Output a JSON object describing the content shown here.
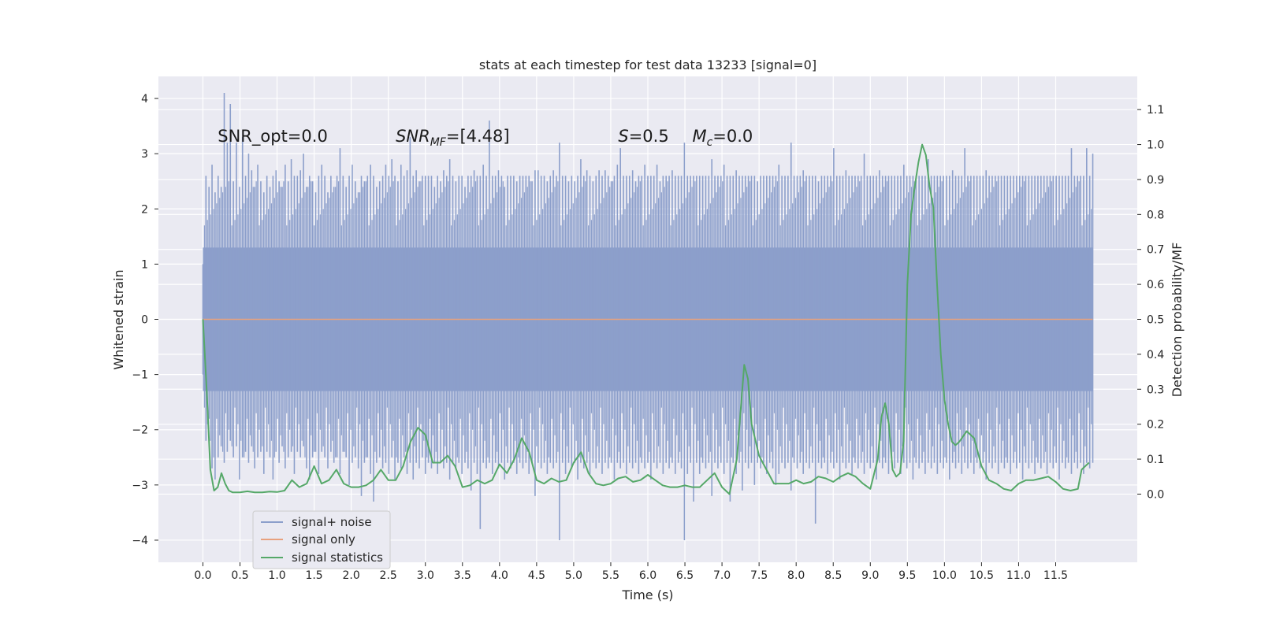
{
  "chart_data": {
    "type": "line",
    "title": "stats at each timestep for test data 13233 [signal=0]",
    "xlabel": "Time (s)",
    "ylabel": "Whitened strain",
    "y2label": "Detection probability/MF",
    "xlim": [
      -0.6,
      12.6
    ],
    "ylim": [
      -4.4,
      4.4
    ],
    "y2lim": [
      -0.195,
      1.195
    ],
    "xticks": [
      0.0,
      0.5,
      1.0,
      1.5,
      2.0,
      2.5,
      3.0,
      3.5,
      4.0,
      4.5,
      5.0,
      5.5,
      6.0,
      6.5,
      7.0,
      7.5,
      8.0,
      8.5,
      9.0,
      9.5,
      10.0,
      10.5,
      11.0,
      11.5
    ],
    "yticks": [
      -4,
      -3,
      -2,
      -1,
      0,
      1,
      2,
      3,
      4
    ],
    "y2ticks": [
      0.0,
      0.1,
      0.2,
      0.3,
      0.4,
      0.5,
      0.6,
      0.7,
      0.8,
      0.9,
      1.0,
      1.1
    ],
    "grid": true,
    "legend_position": "lower-left",
    "annotations": [
      {
        "text": "SNR_opt=0.0",
        "x": 0.2,
        "y": 3.3
      },
      {
        "text": "SNR_MF=[4.48]",
        "x": 2.6,
        "y": 3.3
      },
      {
        "text": "S=0.5",
        "x": 5.6,
        "y": 3.3
      },
      {
        "text": "M_c=0.0",
        "x": 6.6,
        "y": 3.3
      }
    ],
    "series": [
      {
        "name": "signal+ noise",
        "axis": "left",
        "color": "#8c9fcb",
        "x_range": [
          0.0,
          12.0
        ],
        "envelope_upper": [
          1.0,
          2.6,
          2.4,
          2.8,
          2.3,
          2.6,
          2.4,
          4.1,
          3.2,
          3.9,
          2.5,
          3.2,
          2.4,
          3.3,
          2.6,
          3.0,
          2.7,
          2.4,
          2.8,
          2.5,
          2.3,
          2.6,
          2.4,
          2.6,
          2.7,
          2.5,
          2.4,
          2.8,
          2.5,
          2.9,
          2.6,
          2.6,
          2.7,
          3.0,
          2.4,
          2.6,
          2.5,
          2.3,
          2.6,
          2.8,
          2.6,
          2.3,
          2.6,
          2.4,
          2.6,
          3.1,
          2.6,
          2.4,
          2.6,
          2.8,
          2.5,
          2.3,
          2.6,
          2.5,
          2.6,
          2.8,
          2.6,
          2.4,
          2.5,
          2.6,
          2.8,
          2.6,
          2.9,
          2.6,
          2.5,
          2.8,
          2.6,
          2.7,
          3.3,
          2.6,
          2.7,
          2.5,
          2.6,
          2.6,
          2.6,
          2.6,
          2.4,
          2.6,
          2.5,
          2.7,
          2.6,
          2.9,
          2.6,
          2.5,
          2.6,
          2.6,
          2.4,
          2.6,
          2.6,
          2.7,
          2.6,
          2.6,
          2.8,
          2.6,
          3.6,
          2.6,
          2.6,
          2.7,
          2.6,
          2.4,
          2.6,
          2.6,
          2.6,
          2.5,
          2.6,
          2.6,
          2.6,
          2.6,
          2.5,
          2.7,
          2.7,
          2.6,
          2.6,
          2.5,
          2.6,
          2.7,
          2.6,
          3.2,
          2.6,
          2.6,
          2.5,
          2.6,
          2.5,
          2.6,
          2.9,
          2.6,
          2.7,
          2.6,
          2.5,
          2.6,
          2.7,
          2.6,
          2.7,
          2.6,
          2.5,
          2.6,
          2.8,
          3.1,
          2.6,
          2.6,
          2.6,
          2.7,
          2.5,
          2.6,
          2.6,
          2.8,
          2.6,
          2.6,
          2.6,
          2.8,
          2.5,
          2.6,
          2.6,
          2.6,
          2.7,
          2.6,
          2.6,
          2.6,
          3.2,
          2.6,
          2.6,
          2.6,
          2.6,
          2.6,
          2.6,
          2.6,
          2.6,
          2.9,
          2.6,
          2.6,
          2.6,
          2.8,
          2.6,
          2.6,
          2.6,
          2.7,
          2.6,
          2.6,
          2.6,
          2.6,
          2.6,
          2.6,
          2.5,
          2.6,
          2.6,
          2.6,
          2.6,
          2.6,
          2.6,
          2.8,
          2.6,
          2.6,
          2.6,
          3.2,
          2.6,
          2.6,
          2.6,
          2.7,
          2.6,
          2.6,
          2.6,
          2.6,
          2.5,
          2.6,
          2.6,
          2.6,
          2.6,
          3.1,
          2.6,
          2.6,
          2.6,
          2.7,
          2.6,
          2.6,
          2.6,
          2.6,
          2.6,
          3.0,
          2.6,
          2.6,
          2.6,
          2.6,
          2.7,
          2.6,
          2.6,
          2.6,
          2.6,
          2.6,
          2.6,
          2.6,
          2.8,
          2.6,
          2.6,
          2.6,
          2.6,
          2.6,
          2.6,
          2.6,
          2.9,
          2.6,
          2.6,
          2.6,
          2.6,
          2.6,
          2.6,
          2.6,
          2.7,
          2.6,
          2.6,
          2.6,
          3.1,
          2.6,
          2.6,
          2.6,
          2.6,
          2.6,
          2.6,
          2.7,
          2.6,
          2.6,
          2.6,
          2.6,
          2.6,
          2.6,
          2.6,
          2.6,
          2.6,
          2.6,
          2.6,
          2.6,
          2.6,
          2.6,
          2.6,
          2.6,
          2.6,
          2.6,
          2.6,
          2.6,
          2.6,
          2.6,
          2.6,
          2.6,
          2.6,
          2.6,
          2.6,
          3.1,
          2.6,
          2.6,
          2.6,
          2.6,
          3.1,
          2.6,
          3.0
        ],
        "envelope_lower": [
          -1.0,
          -2.2,
          -1.8,
          -2.7,
          -2.9,
          -2.5,
          -2.3,
          -2.6,
          -2.4,
          -2.2,
          -2.5,
          -2.3,
          -2.9,
          -2.5,
          -2.4,
          -2.6,
          -2.3,
          -2.7,
          -2.5,
          -2.4,
          -2.8,
          -2.4,
          -2.5,
          -2.9,
          -2.4,
          -2.6,
          -2.3,
          -2.7,
          -2.5,
          -2.4,
          -2.8,
          -2.4,
          -2.5,
          -2.3,
          -2.7,
          -2.9,
          -2.5,
          -2.4,
          -2.8,
          -2.4,
          -2.5,
          -2.7,
          -2.4,
          -2.6,
          -2.5,
          -2.8,
          -2.4,
          -2.5,
          -3.0,
          -2.6,
          -2.5,
          -2.7,
          -3.2,
          -2.6,
          -2.5,
          -2.8,
          -3.3,
          -2.6,
          -2.5,
          -2.7,
          -2.6,
          -2.8,
          -2.5,
          -2.9,
          -2.6,
          -2.7,
          -2.5,
          -2.8,
          -2.6,
          -2.9,
          -2.6,
          -2.7,
          -2.5,
          -2.8,
          -2.6,
          -2.7,
          -2.6,
          -2.8,
          -2.6,
          -2.7,
          -2.6,
          -2.9,
          -2.6,
          -2.7,
          -2.6,
          -2.8,
          -2.6,
          -2.7,
          -3.1,
          -2.6,
          -2.8,
          -3.8,
          -2.6,
          -2.7,
          -2.6,
          -2.8,
          -2.6,
          -2.7,
          -2.6,
          -2.9,
          -2.6,
          -2.7,
          -2.6,
          -2.8,
          -2.6,
          -2.7,
          -2.6,
          -2.8,
          -2.6,
          -3.2,
          -2.6,
          -2.7,
          -2.6,
          -2.8,
          -2.6,
          -2.7,
          -2.6,
          -4.0,
          -2.6,
          -2.8,
          -2.6,
          -2.7,
          -2.6,
          -2.9,
          -2.6,
          -2.7,
          -2.6,
          -2.8,
          -2.6,
          -2.7,
          -2.6,
          -2.8,
          -2.6,
          -2.7,
          -2.6,
          -2.9,
          -2.6,
          -2.7,
          -2.6,
          -2.8,
          -2.6,
          -2.7,
          -2.6,
          -2.8,
          -2.6,
          -2.7,
          -2.6,
          -2.9,
          -2.6,
          -2.7,
          -2.6,
          -2.8,
          -2.6,
          -2.7,
          -2.6,
          -2.8,
          -2.6,
          -2.7,
          -4.0,
          -2.8,
          -2.6,
          -3.3,
          -2.6,
          -2.8,
          -2.6,
          -2.7,
          -2.6,
          -3.2,
          -2.6,
          -2.7,
          -2.6,
          -2.8,
          -2.6,
          -3.3,
          -2.6,
          -2.8,
          -2.6,
          -3.1,
          -2.6,
          -2.7,
          -2.6,
          -3.0,
          -2.6,
          -2.7,
          -2.6,
          -2.8,
          -2.6,
          -2.7,
          -3.0,
          -2.8,
          -2.6,
          -2.7,
          -2.6,
          -3.1,
          -2.6,
          -2.7,
          -2.6,
          -2.8,
          -2.6,
          -2.7,
          -2.6,
          -3.7,
          -2.6,
          -2.7,
          -2.6,
          -2.8,
          -2.6,
          -2.7,
          -2.6,
          -2.9,
          -2.6,
          -2.7,
          -2.6,
          -2.8,
          -2.6,
          -2.7,
          -2.6,
          -2.8,
          -2.6,
          -2.7,
          -2.6,
          -2.9,
          -2.6,
          -2.7,
          -2.6,
          -2.8,
          -2.6,
          -2.7,
          -2.6,
          -2.8,
          -2.6,
          -2.7,
          -2.6,
          -2.9,
          -2.6,
          -2.7,
          -2.6,
          -2.8,
          -2.6,
          -2.7,
          -2.6,
          -2.8,
          -2.6,
          -2.7,
          -2.6,
          -2.9,
          -2.6,
          -2.7,
          -2.6,
          -2.8,
          -2.6,
          -2.7,
          -2.6,
          -2.8,
          -2.6,
          -2.7,
          -2.6,
          -2.9,
          -2.6,
          -2.7,
          -2.6,
          -2.8,
          -2.6,
          -2.7,
          -2.6,
          -2.8,
          -2.6,
          -2.7,
          -2.6,
          -2.9,
          -2.6,
          -2.7,
          -2.6,
          -2.8,
          -2.6,
          -2.7,
          -2.6,
          -2.8,
          -2.6,
          -2.7,
          -2.6,
          -2.9,
          -2.6,
          -2.7,
          -2.6,
          -2.8,
          -2.6,
          -2.7,
          -2.6,
          -2.8,
          -2.6,
          -2.7,
          -2.6,
          -2.9,
          -2.6,
          -2.7,
          -2.6,
          -2.8
        ]
      },
      {
        "name": "signal only",
        "axis": "left",
        "color": "#e8a17e",
        "x": [
          0.0,
          12.0
        ],
        "y": [
          0.0,
          0.0
        ]
      },
      {
        "name": "signal statistics",
        "axis": "right",
        "color": "#55a868",
        "x": [
          0.0,
          0.05,
          0.1,
          0.15,
          0.2,
          0.25,
          0.3,
          0.35,
          0.4,
          0.45,
          0.5,
          0.6,
          0.7,
          0.8,
          0.9,
          1.0,
          1.1,
          1.2,
          1.3,
          1.4,
          1.5,
          1.6,
          1.7,
          1.8,
          1.9,
          2.0,
          2.1,
          2.2,
          2.3,
          2.4,
          2.5,
          2.6,
          2.7,
          2.8,
          2.9,
          3.0,
          3.1,
          3.2,
          3.3,
          3.4,
          3.5,
          3.6,
          3.7,
          3.8,
          3.9,
          4.0,
          4.1,
          4.2,
          4.3,
          4.4,
          4.5,
          4.6,
          4.7,
          4.8,
          4.9,
          5.0,
          5.1,
          5.2,
          5.3,
          5.4,
          5.5,
          5.6,
          5.7,
          5.8,
          5.9,
          6.0,
          6.1,
          6.2,
          6.3,
          6.4,
          6.5,
          6.6,
          6.7,
          6.8,
          6.9,
          7.0,
          7.1,
          7.2,
          7.3,
          7.35,
          7.4,
          7.5,
          7.6,
          7.7,
          7.8,
          7.9,
          8.0,
          8.1,
          8.2,
          8.3,
          8.4,
          8.5,
          8.6,
          8.7,
          8.8,
          8.9,
          9.0,
          9.1,
          9.15,
          9.2,
          9.25,
          9.3,
          9.35,
          9.4,
          9.45,
          9.5,
          9.55,
          9.6,
          9.65,
          9.7,
          9.75,
          9.8,
          9.85,
          9.9,
          9.95,
          10.0,
          10.05,
          10.1,
          10.15,
          10.2,
          10.3,
          10.4,
          10.5,
          10.6,
          10.7,
          10.8,
          10.9,
          11.0,
          11.1,
          11.2,
          11.3,
          11.4,
          11.5,
          11.6,
          11.7,
          11.8,
          11.85,
          11.9,
          11.95
        ],
        "y": [
          0.5,
          0.3,
          0.07,
          0.01,
          0.02,
          0.06,
          0.03,
          0.01,
          0.005,
          0.005,
          0.005,
          0.008,
          0.005,
          0.005,
          0.007,
          0.006,
          0.01,
          0.04,
          0.02,
          0.03,
          0.08,
          0.03,
          0.04,
          0.07,
          0.03,
          0.02,
          0.02,
          0.025,
          0.04,
          0.07,
          0.04,
          0.04,
          0.08,
          0.15,
          0.19,
          0.17,
          0.09,
          0.09,
          0.11,
          0.08,
          0.02,
          0.025,
          0.04,
          0.03,
          0.04,
          0.085,
          0.06,
          0.1,
          0.16,
          0.12,
          0.04,
          0.03,
          0.045,
          0.035,
          0.04,
          0.09,
          0.12,
          0.06,
          0.03,
          0.025,
          0.03,
          0.045,
          0.05,
          0.035,
          0.04,
          0.055,
          0.04,
          0.025,
          0.02,
          0.02,
          0.025,
          0.02,
          0.02,
          0.04,
          0.06,
          0.02,
          0.0,
          0.1,
          0.37,
          0.33,
          0.2,
          0.11,
          0.07,
          0.03,
          0.03,
          0.03,
          0.04,
          0.03,
          0.035,
          0.05,
          0.045,
          0.035,
          0.05,
          0.06,
          0.05,
          0.03,
          0.015,
          0.1,
          0.22,
          0.26,
          0.2,
          0.07,
          0.05,
          0.06,
          0.15,
          0.6,
          0.8,
          0.88,
          0.95,
          1.0,
          0.97,
          0.88,
          0.82,
          0.6,
          0.4,
          0.27,
          0.2,
          0.15,
          0.14,
          0.15,
          0.18,
          0.16,
          0.08,
          0.04,
          0.03,
          0.015,
          0.01,
          0.03,
          0.04,
          0.04,
          0.045,
          0.05,
          0.035,
          0.015,
          0.01,
          0.015,
          0.07,
          0.08,
          0.09
        ]
      }
    ]
  }
}
